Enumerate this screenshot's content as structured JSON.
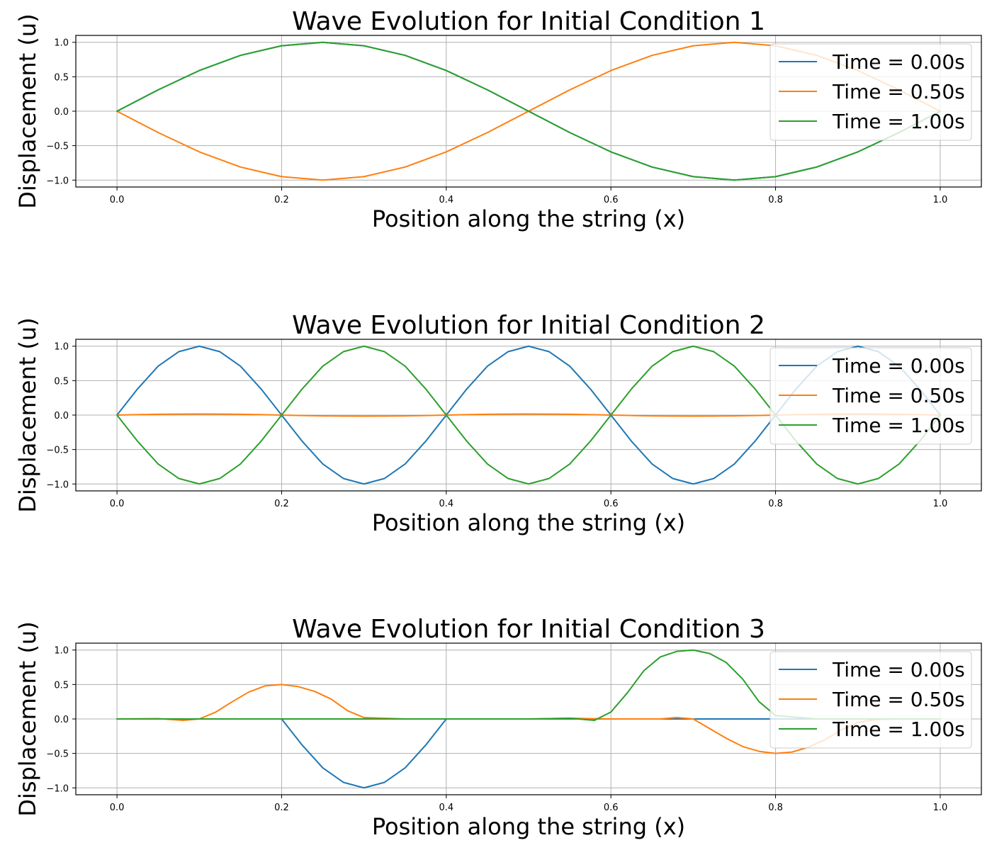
{
  "chart_data": [
    {
      "type": "line",
      "title": "Wave Evolution for Initial Condition 1",
      "xlabel": "Position along the string (x)",
      "ylabel": "Displacement (u)",
      "xlim": [
        -0.05,
        1.05
      ],
      "ylim": [
        -1.1,
        1.1
      ],
      "xticks": [
        0.0,
        0.2,
        0.4,
        0.6,
        0.8,
        1.0
      ],
      "xtick_labels": [
        "0.0",
        "0.2",
        "0.4",
        "0.6",
        "0.8",
        "1.0"
      ],
      "yticks": [
        -1.0,
        -0.5,
        0.0,
        0.5,
        1.0
      ],
      "ytick_labels": [
        "−1.0",
        "−0.5",
        "0.0",
        "0.5",
        "1.0"
      ],
      "grid": true,
      "legend_position": "top-right",
      "x": [
        0.0,
        0.05,
        0.1,
        0.15,
        0.2,
        0.25,
        0.3,
        0.35,
        0.4,
        0.45,
        0.5,
        0.55,
        0.6,
        0.65,
        0.7,
        0.75,
        0.8,
        0.85,
        0.9,
        0.95,
        1.0
      ],
      "series": [
        {
          "name": "Time = 0.00s",
          "color": "#1f77b4",
          "values": [
            0.0,
            0.31,
            0.59,
            0.81,
            0.95,
            1.0,
            0.95,
            0.81,
            0.59,
            0.31,
            0.0,
            -0.31,
            -0.59,
            -0.81,
            -0.95,
            -1.0,
            -0.95,
            -0.81,
            -0.59,
            -0.31,
            0.0
          ]
        },
        {
          "name": "Time = 0.50s",
          "color": "#ff7f0e",
          "values": [
            0.0,
            -0.31,
            -0.59,
            -0.81,
            -0.95,
            -1.0,
            -0.95,
            -0.81,
            -0.59,
            -0.31,
            0.0,
            0.31,
            0.59,
            0.81,
            0.95,
            1.0,
            0.95,
            0.81,
            0.59,
            0.31,
            0.0
          ]
        },
        {
          "name": "Time = 1.00s",
          "color": "#2ca02c",
          "values": [
            0.0,
            0.31,
            0.59,
            0.81,
            0.95,
            1.0,
            0.95,
            0.81,
            0.59,
            0.31,
            0.0,
            -0.31,
            -0.59,
            -0.81,
            -0.95,
            -1.0,
            -0.95,
            -0.81,
            -0.59,
            -0.31,
            0.0
          ]
        }
      ]
    },
    {
      "type": "line",
      "title": "Wave Evolution for Initial Condition 2",
      "xlabel": "Position along the string (x)",
      "ylabel": "Displacement (u)",
      "xlim": [
        -0.05,
        1.05
      ],
      "ylim": [
        -1.1,
        1.1
      ],
      "xticks": [
        0.0,
        0.2,
        0.4,
        0.6,
        0.8,
        1.0
      ],
      "xtick_labels": [
        "0.0",
        "0.2",
        "0.4",
        "0.6",
        "0.8",
        "1.0"
      ],
      "yticks": [
        -1.0,
        -0.5,
        0.0,
        0.5,
        1.0
      ],
      "ytick_labels": [
        "−1.0",
        "−0.5",
        "0.0",
        "0.5",
        "1.0"
      ],
      "grid": true,
      "legend_position": "top-right",
      "x": [
        0.0,
        0.025,
        0.05,
        0.075,
        0.1,
        0.125,
        0.15,
        0.175,
        0.2,
        0.225,
        0.25,
        0.275,
        0.3,
        0.325,
        0.35,
        0.375,
        0.4,
        0.425,
        0.45,
        0.475,
        0.5,
        0.525,
        0.55,
        0.575,
        0.6,
        0.625,
        0.65,
        0.675,
        0.7,
        0.725,
        0.75,
        0.775,
        0.8,
        0.825,
        0.85,
        0.875,
        0.9,
        0.925,
        0.95,
        0.975,
        1.0
      ],
      "series": [
        {
          "name": "Time = 0.00s",
          "color": "#1f77b4",
          "values": [
            0.0,
            0.38,
            0.71,
            0.92,
            1.0,
            0.92,
            0.71,
            0.38,
            0.0,
            -0.38,
            -0.71,
            -0.92,
            -1.0,
            -0.92,
            -0.71,
            -0.38,
            0.0,
            0.38,
            0.71,
            0.92,
            1.0,
            0.92,
            0.71,
            0.38,
            0.0,
            -0.38,
            -0.71,
            -0.92,
            -1.0,
            -0.92,
            -0.71,
            -0.38,
            0.0,
            0.38,
            0.71,
            0.92,
            1.0,
            0.92,
            0.71,
            0.38,
            0.0
          ]
        },
        {
          "name": "Time = 0.50s",
          "color": "#ff7f0e",
          "values": [
            0.0,
            0.006,
            0.011,
            0.014,
            0.015,
            0.014,
            0.011,
            0.006,
            0.0,
            -0.006,
            -0.011,
            -0.014,
            -0.015,
            -0.014,
            -0.011,
            -0.006,
            0.0,
            0.006,
            0.011,
            0.014,
            0.015,
            0.014,
            0.011,
            0.006,
            0.0,
            -0.006,
            -0.011,
            -0.014,
            -0.015,
            -0.014,
            -0.011,
            -0.006,
            0.0,
            0.006,
            0.011,
            0.014,
            0.015,
            0.014,
            0.011,
            0.006,
            0.0
          ]
        },
        {
          "name": "Time = 1.00s",
          "color": "#2ca02c",
          "values": [
            0.0,
            -0.38,
            -0.71,
            -0.92,
            -1.0,
            -0.92,
            -0.71,
            -0.38,
            0.0,
            0.38,
            0.71,
            0.92,
            1.0,
            0.92,
            0.71,
            0.38,
            0.0,
            -0.38,
            -0.71,
            -0.92,
            -1.0,
            -0.92,
            -0.71,
            -0.38,
            0.0,
            0.38,
            0.71,
            0.92,
            1.0,
            0.92,
            0.71,
            0.38,
            0.0,
            -0.38,
            -0.71,
            -0.92,
            -1.0,
            -0.92,
            -0.71,
            -0.38,
            0.0
          ]
        }
      ]
    },
    {
      "type": "line",
      "title": "Wave Evolution for Initial Condition 3",
      "xlabel": "Position along the string (x)",
      "ylabel": "Displacement (u)",
      "xlim": [
        -0.05,
        1.05
      ],
      "ylim": [
        -1.1,
        1.1
      ],
      "xticks": [
        0.0,
        0.2,
        0.4,
        0.6,
        0.8,
        1.0
      ],
      "xtick_labels": [
        "0.0",
        "0.2",
        "0.4",
        "0.6",
        "0.8",
        "1.0"
      ],
      "yticks": [
        -1.0,
        -0.5,
        0.0,
        0.5,
        1.0
      ],
      "ytick_labels": [
        "−1.0",
        "−0.5",
        "0.0",
        "0.5",
        "1.0"
      ],
      "grid": true,
      "legend_position": "top-right",
      "series": [
        {
          "name": "Time = 0.00s",
          "color": "#1f77b4",
          "x": [
            0.0,
            0.2,
            0.225,
            0.25,
            0.275,
            0.3,
            0.325,
            0.35,
            0.375,
            0.4,
            1.0
          ],
          "values": [
            0.0,
            0.0,
            -0.38,
            -0.71,
            -0.92,
            -1.0,
            -0.92,
            -0.71,
            -0.38,
            0.0,
            0.0
          ]
        },
        {
          "name": "Time = 0.50s",
          "color": "#ff7f0e",
          "x": [
            0.0,
            0.05,
            0.08,
            0.1,
            0.12,
            0.14,
            0.16,
            0.18,
            0.2,
            0.22,
            0.24,
            0.26,
            0.28,
            0.3,
            0.35,
            0.4,
            0.5,
            0.55,
            0.6,
            0.66,
            0.68,
            0.7,
            0.72,
            0.74,
            0.76,
            0.78,
            0.8,
            0.82,
            0.84,
            0.86,
            0.88,
            0.9,
            0.92,
            0.94,
            0.96,
            1.0
          ],
          "values": [
            0.0,
            0.005,
            -0.02,
            0.0,
            0.1,
            0.25,
            0.39,
            0.48,
            0.5,
            0.47,
            0.4,
            0.29,
            0.12,
            0.02,
            0.0,
            0.0,
            0.0,
            0.01,
            0.0,
            0.0,
            0.02,
            0.0,
            -0.14,
            -0.28,
            -0.4,
            -0.47,
            -0.5,
            -0.48,
            -0.41,
            -0.3,
            -0.16,
            -0.05,
            -0.01,
            0.0,
            0.0,
            0.0
          ]
        },
        {
          "name": "Time = 1.00s",
          "color": "#2ca02c",
          "x": [
            0.0,
            0.1,
            0.2,
            0.3,
            0.4,
            0.5,
            0.55,
            0.58,
            0.6,
            0.62,
            0.64,
            0.66,
            0.68,
            0.7,
            0.72,
            0.74,
            0.76,
            0.78,
            0.8,
            0.85,
            0.9,
            1.0
          ],
          "values": [
            0.0,
            0.0,
            0.0,
            0.0,
            0.0,
            0.0,
            0.01,
            -0.02,
            0.1,
            0.38,
            0.7,
            0.9,
            0.98,
            1.0,
            0.95,
            0.82,
            0.58,
            0.25,
            0.05,
            0.0,
            0.0,
            0.0
          ]
        }
      ]
    }
  ]
}
